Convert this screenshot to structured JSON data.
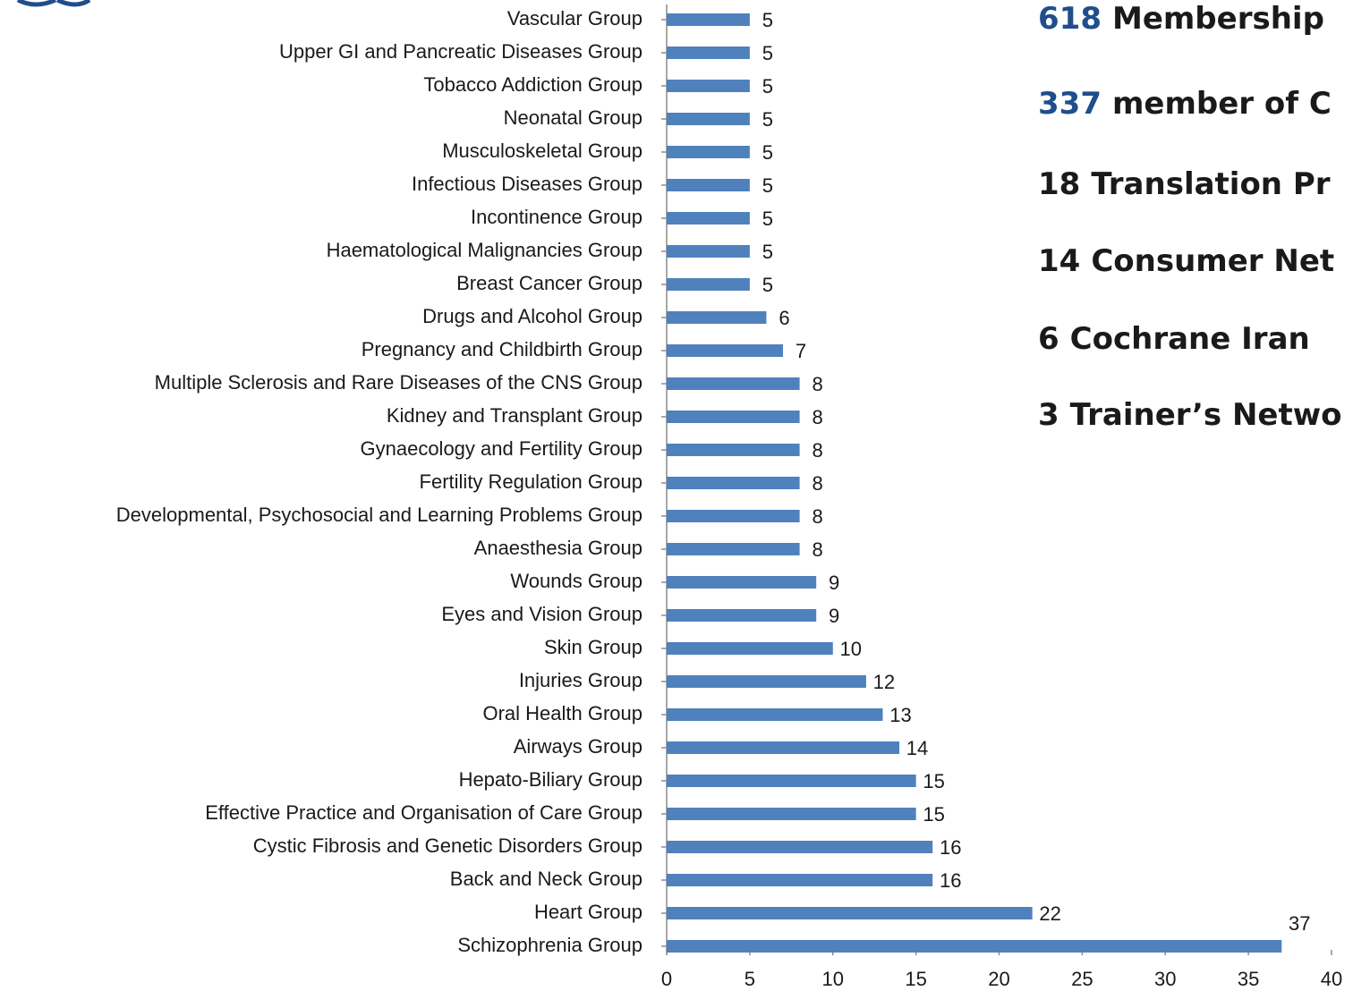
{
  "chart_data": {
    "type": "bar",
    "orientation": "horizontal",
    "color": "#4f81bd",
    "categories": [
      "Vascular Group",
      "Upper GI and Pancreatic Diseases Group",
      "Tobacco Addiction Group",
      "Neonatal Group",
      "Musculoskeletal Group",
      "Infectious Diseases Group",
      "Incontinence Group",
      "Haematological Malignancies Group",
      "Breast Cancer Group",
      "Drugs and Alcohol Group",
      "Pregnancy and Childbirth Group",
      "Multiple Sclerosis and Rare Diseases of the CNS Group",
      "Kidney and Transplant Group",
      "Gynaecology and Fertility Group",
      "Fertility Regulation Group",
      "Developmental, Psychosocial and Learning Problems Group",
      "Anaesthesia Group",
      "Wounds Group",
      "Eyes and Vision Group",
      "Skin Group",
      "Injuries Group",
      "Oral Health Group",
      "Airways Group",
      "Hepato-Biliary Group",
      "Effective Practice and Organisation of Care Group",
      "Cystic Fibrosis and Genetic Disorders Group",
      "Back and Neck Group",
      "Heart Group",
      "Schizophrenia Group"
    ],
    "values": [
      5,
      5,
      5,
      5,
      5,
      5,
      5,
      5,
      5,
      6,
      7,
      8,
      8,
      8,
      8,
      8,
      8,
      9,
      9,
      10,
      12,
      13,
      14,
      15,
      15,
      16,
      16,
      22,
      37
    ],
    "xlim": [
      0,
      40
    ],
    "xticks": [
      0,
      5,
      10,
      15,
      20,
      25,
      30,
      35,
      40
    ]
  },
  "stats": [
    {
      "number": 618,
      "text": "Membership",
      "color": "#1f4e8c"
    },
    {
      "number": 337,
      "text": "member of C",
      "color": "#1f4e8c"
    },
    {
      "number": 18,
      "text": "Translation Pr",
      "color": "#1a1a1a"
    },
    {
      "number": 14,
      "text": "Consumer Net",
      "color": "#1a1a1a"
    },
    {
      "number": 6,
      "text": "Cochrane Iran",
      "color": "#1a1a1a"
    },
    {
      "number": 3,
      "text": "Trainer’s Netwo",
      "color": "#1a1a1a"
    }
  ]
}
